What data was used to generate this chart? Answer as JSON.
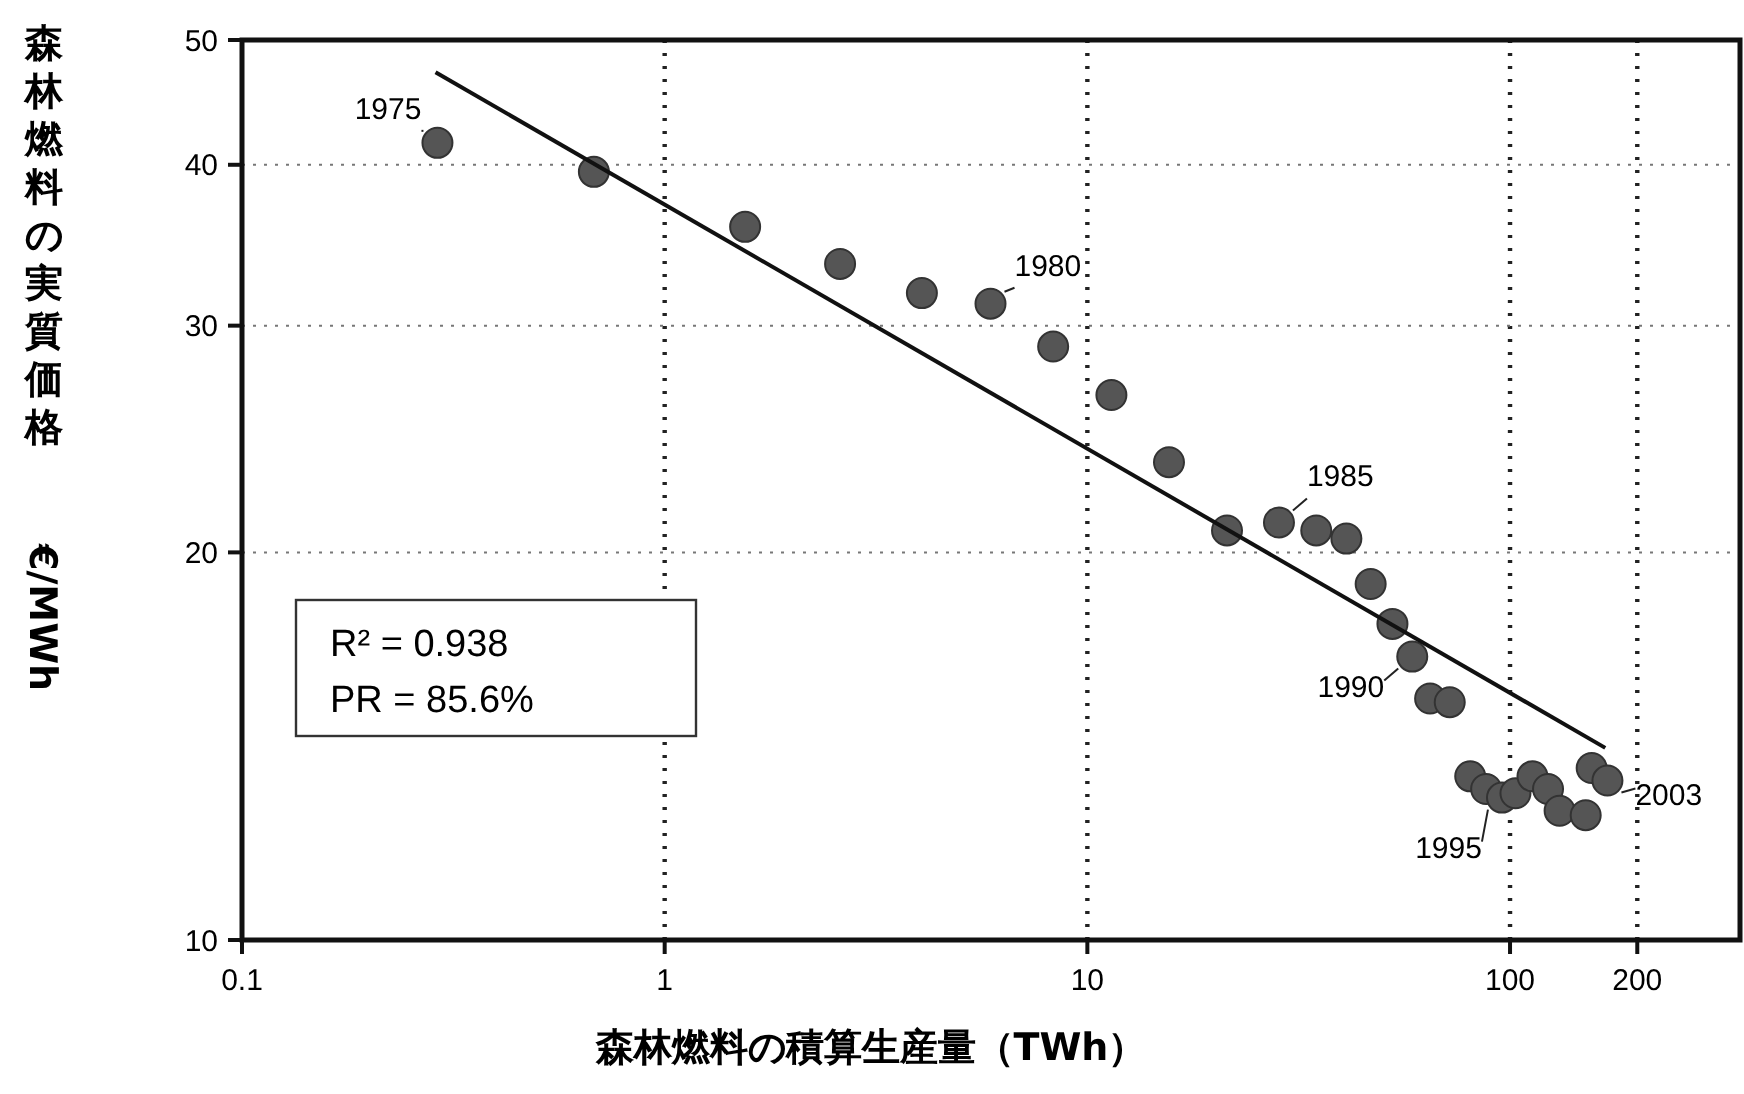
{
  "chart_data": {
    "type": "scatter",
    "xlabel": "森林燃料の積算生産量（TWh）",
    "ylabel": "森林燃料の実質価格　€/MWh",
    "log": "xy",
    "grid": true,
    "marker": "circle",
    "xlim": [
      0.1,
      350
    ],
    "xticks": [
      0.1,
      1,
      10,
      100,
      200
    ],
    "ylim": [
      10,
      50
    ],
    "yticks": [
      10,
      20,
      30,
      40,
      50
    ],
    "series": [
      {
        "color": "#555555",
        "x": [
          0.29,
          0.68,
          1.55,
          2.6,
          4.06,
          5.9,
          8.3,
          11.4,
          15.6,
          21.4,
          28.4,
          34.8,
          41,
          46.8,
          52.7,
          58.7,
          64.7,
          72,
          80.5,
          87.8,
          95.7,
          103,
          113,
          123,
          131,
          151,
          156,
          170
        ],
        "values": [
          41.6,
          39.5,
          35.8,
          33.5,
          31.8,
          31.2,
          28.9,
          26.5,
          23.5,
          20.8,
          21.1,
          20.8,
          20.5,
          18.9,
          17.6,
          16.6,
          15.4,
          15.3,
          13.4,
          13.1,
          12.9,
          13.0,
          13.4,
          13.1,
          12.6,
          12.5,
          13.6,
          13.3
        ]
      },
      {
        "type": "line",
        "marker": "none",
        "color": "#111111",
        "x": [
          0.287,
          168
        ],
        "values": [
          47.2,
          14.1
        ]
      }
    ],
    "annotations": [
      {
        "text": "1975",
        "x": 0.29,
        "y": 41.6
      },
      {
        "text": "1980",
        "x": 5.9,
        "y": 31.2
      },
      {
        "text": "1985",
        "x": 28.4,
        "y": 21.1
      },
      {
        "text": "1990",
        "x": 58.7,
        "y": 16.6
      },
      {
        "text": "1995",
        "x": 95.7,
        "y": 12.9
      },
      {
        "text": "2003",
        "x": 170,
        "y": 13.3
      },
      "R² = 0.938",
      "PR = 85.6%"
    ]
  }
}
